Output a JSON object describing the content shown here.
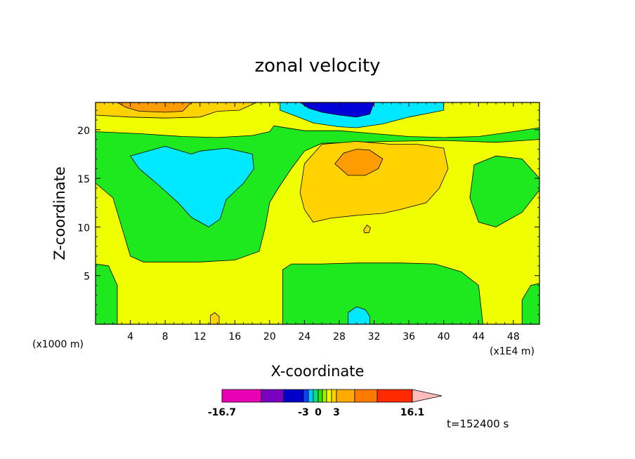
{
  "chart_data": {
    "type": "heatmap",
    "title": "zonal velocity",
    "xlabel": "X-coordinate",
    "ylabel": "Z-coordinate",
    "x_unit_left": "(x1000 m)",
    "x_unit_right": "(x1E4 m)",
    "xlim": [
      0,
      51
    ],
    "ylim": [
      0,
      22.8
    ],
    "x_ticks": [
      4,
      8,
      12,
      16,
      20,
      24,
      28,
      32,
      36,
      40,
      44,
      48
    ],
    "y_ticks": [
      5,
      10,
      15,
      20
    ],
    "time_label": "t=152400 s",
    "colorbar": {
      "tick_labels": [
        "-16.7",
        "-3",
        "0",
        "3",
        "16.1"
      ],
      "colors": [
        "#e800b5",
        "#7a00c0",
        "#0000c8",
        "#0a44ff",
        "#00c8ff",
        "#00e080",
        "#37e000",
        "#aaee00",
        "#f0ff00",
        "#ffd200",
        "#ffaa00",
        "#ff7b00",
        "#ff2a00",
        "#ff7878",
        "#ffbcbc"
      ]
    },
    "regions": [
      {
        "level": "yellow",
        "color": "#f0ff00",
        "polygon": [
          [
            0,
            0
          ],
          [
            51,
            0
          ],
          [
            51,
            22.8
          ],
          [
            0,
            22.8
          ]
        ]
      },
      {
        "level": "green",
        "color": "#1ee81e",
        "polygon": [
          [
            0,
            19.8
          ],
          [
            5,
            19.6
          ],
          [
            10,
            19.3
          ],
          [
            14,
            19.2
          ],
          [
            18,
            19.4
          ],
          [
            20,
            19.8
          ],
          [
            20.5,
            20.4
          ],
          [
            24,
            19.9
          ],
          [
            28,
            19.9
          ],
          [
            32,
            19.6
          ],
          [
            36,
            19.3
          ],
          [
            40,
            19.2
          ],
          [
            44,
            19.3
          ],
          [
            48,
            19.8
          ],
          [
            51,
            20.2
          ],
          [
            51,
            19
          ],
          [
            46,
            18.7
          ],
          [
            40,
            18.9
          ],
          [
            34,
            18.8
          ],
          [
            26,
            18.6
          ],
          [
            24,
            17.8
          ],
          [
            22.5,
            16
          ],
          [
            21,
            14
          ],
          [
            20,
            12.5
          ],
          [
            19.5,
            10
          ],
          [
            18.8,
            7.5
          ],
          [
            16,
            6.6
          ],
          [
            12,
            6.4
          ],
          [
            5.5,
            6.4
          ],
          [
            4,
            7
          ],
          [
            3,
            10
          ],
          [
            2,
            13
          ],
          [
            0,
            14.5
          ]
        ]
      },
      {
        "level": "green",
        "color": "#1ee81e",
        "polygon": [
          [
            0,
            0
          ],
          [
            0,
            6.2
          ],
          [
            1.5,
            6
          ],
          [
            2.5,
            4
          ],
          [
            2.5,
            0
          ]
        ]
      },
      {
        "level": "green",
        "color": "#1ee81e",
        "polygon": [
          [
            21.5,
            0
          ],
          [
            21.5,
            5.6
          ],
          [
            22.5,
            6.2
          ],
          [
            26,
            6.2
          ],
          [
            30,
            6.3
          ],
          [
            35,
            6.3
          ],
          [
            39,
            6.2
          ],
          [
            42,
            5.4
          ],
          [
            44,
            4
          ],
          [
            44.5,
            0
          ]
        ]
      },
      {
        "level": "green",
        "color": "#1ee81e",
        "polygon": [
          [
            51,
            15
          ],
          [
            49,
            17
          ],
          [
            46,
            17.3
          ],
          [
            43.5,
            16.4
          ],
          [
            43,
            13
          ],
          [
            44,
            10.5
          ],
          [
            46,
            10
          ],
          [
            49,
            11.5
          ],
          [
            51,
            13.8
          ]
        ]
      },
      {
        "level": "green",
        "color": "#1ee81e",
        "polygon": [
          [
            49,
            0
          ],
          [
            49,
            2.5
          ],
          [
            50,
            4
          ],
          [
            51,
            4.2
          ],
          [
            51,
            0
          ]
        ]
      },
      {
        "level": "cyan",
        "color": "#00e8ff",
        "polygon": [
          [
            4,
            17.3
          ],
          [
            8,
            18.3
          ],
          [
            11,
            17.5
          ],
          [
            12,
            17.8
          ],
          [
            15,
            18.1
          ],
          [
            18,
            17.5
          ],
          [
            18.2,
            16
          ],
          [
            17,
            14.5
          ],
          [
            15,
            12.8
          ],
          [
            14.3,
            10.8
          ],
          [
            13,
            10
          ],
          [
            11,
            11
          ],
          [
            9.5,
            12.5
          ],
          [
            7,
            14.5
          ],
          [
            5,
            16
          ]
        ]
      },
      {
        "level": "cyan",
        "color": "#00e8ff",
        "polygon": [
          [
            21.2,
            22.8
          ],
          [
            21.2,
            22
          ],
          [
            23,
            21.4
          ],
          [
            25,
            20.7
          ],
          [
            28,
            20.3
          ],
          [
            30,
            20.2
          ],
          [
            33,
            20.6
          ],
          [
            36,
            21.3
          ],
          [
            40,
            22
          ],
          [
            40,
            22.8
          ]
        ]
      },
      {
        "level": "cyan",
        "color": "#00e8ff",
        "polygon": [
          [
            29,
            0
          ],
          [
            29,
            1.2
          ],
          [
            30,
            1.8
          ],
          [
            31,
            1.5
          ],
          [
            31.5,
            0.8
          ],
          [
            31.5,
            0
          ]
        ]
      },
      {
        "level": "blue",
        "color": "#0000d8",
        "polygon": [
          [
            23.5,
            22.8
          ],
          [
            24.5,
            22.2
          ],
          [
            26,
            21.8
          ],
          [
            28,
            21.5
          ],
          [
            30,
            21.3
          ],
          [
            31.5,
            21.6
          ],
          [
            32,
            22.8
          ]
        ]
      },
      {
        "level": "gold",
        "color": "#ffd200",
        "polygon": [
          [
            0,
            22.8
          ],
          [
            0,
            21.5
          ],
          [
            4,
            21.3
          ],
          [
            8,
            21.2
          ],
          [
            12,
            21.3
          ],
          [
            14,
            21.9
          ],
          [
            16.5,
            22
          ],
          [
            18.5,
            22.8
          ]
        ]
      },
      {
        "level": "gold",
        "color": "#ffd200",
        "polygon": [
          [
            24,
            16.5
          ],
          [
            26,
            18.5
          ],
          [
            30,
            18.8
          ],
          [
            34,
            18.5
          ],
          [
            37,
            18.5
          ],
          [
            40,
            18.1
          ],
          [
            40.5,
            16
          ],
          [
            39.5,
            14
          ],
          [
            38,
            12.5
          ],
          [
            35,
            11.8
          ],
          [
            33,
            11.4
          ],
          [
            30,
            11.2
          ],
          [
            27,
            10.9
          ],
          [
            25,
            10.5
          ],
          [
            24,
            11.8
          ],
          [
            23.5,
            13.5
          ]
        ]
      },
      {
        "level": "gold",
        "color": "#ffd200",
        "polygon": [
          [
            30.8,
            9.7
          ],
          [
            31.2,
            10.2
          ],
          [
            31.6,
            9.9
          ],
          [
            31.4,
            9.4
          ],
          [
            30.9,
            9.4
          ]
        ]
      },
      {
        "level": "gold",
        "color": "#ffd200",
        "polygon": [
          [
            13.2,
            0
          ],
          [
            13.2,
            0.9
          ],
          [
            13.7,
            1.2
          ],
          [
            14.2,
            0.8
          ],
          [
            14.2,
            0
          ]
        ]
      },
      {
        "level": "orange",
        "color": "#ff9c00",
        "polygon": [
          [
            2.5,
            22.8
          ],
          [
            3.5,
            22.3
          ],
          [
            5,
            21.9
          ],
          [
            8,
            21.8
          ],
          [
            10,
            21.9
          ],
          [
            11,
            22.8
          ]
        ]
      },
      {
        "level": "orange",
        "color": "#ff9c00",
        "polygon": [
          [
            27.5,
            16.5
          ],
          [
            28.5,
            17.6
          ],
          [
            30,
            18
          ],
          [
            31.5,
            17.9
          ],
          [
            33,
            17
          ],
          [
            32.5,
            16
          ],
          [
            31,
            15.3
          ],
          [
            29,
            15.3
          ]
        ]
      }
    ]
  }
}
